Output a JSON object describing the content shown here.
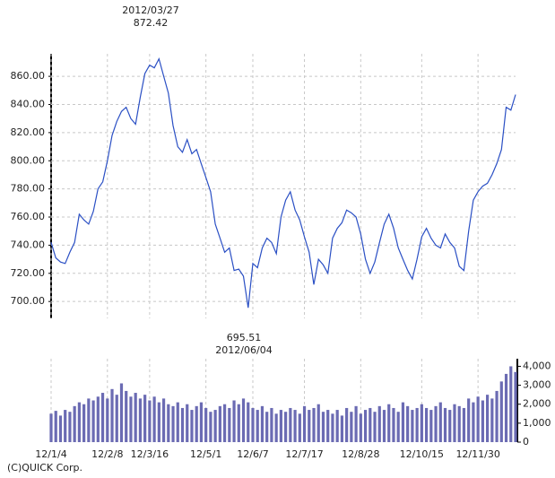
{
  "chart_data": {
    "type": "line",
    "color": "#2a4fc4",
    "grid": true,
    "categories": [
      "12/1/4",
      null,
      null,
      null,
      null,
      null,
      null,
      null,
      null,
      null,
      null,
      null,
      "12/2/8",
      null,
      null,
      null,
      null,
      null,
      null,
      null,
      null,
      "12/3/16",
      null,
      null,
      null,
      null,
      null,
      null,
      null,
      null,
      null,
      null,
      null,
      "12/5/1",
      null,
      null,
      null,
      null,
      null,
      null,
      null,
      null,
      null,
      "12/6/7",
      null,
      null,
      null,
      null,
      null,
      null,
      null,
      null,
      null,
      null,
      "12/7/17",
      null,
      null,
      null,
      null,
      null,
      null,
      null,
      null,
      null,
      null,
      null,
      "12/8/28",
      null,
      null,
      null,
      null,
      null,
      null,
      null,
      null,
      null,
      null,
      null,
      null,
      "12/10/15",
      null,
      null,
      null,
      null,
      null,
      null,
      null,
      null,
      null,
      null,
      null,
      "12/11/30",
      null,
      null,
      null,
      null,
      null,
      null,
      null,
      null
    ],
    "values": [
      742,
      731,
      728,
      727,
      735,
      742,
      762,
      758,
      755,
      764,
      780,
      785,
      800,
      818,
      828,
      835,
      838,
      830,
      826,
      845,
      862,
      868,
      866,
      872.42,
      860,
      848,
      825,
      810,
      806,
      815,
      805,
      808,
      798,
      788,
      778,
      755,
      745,
      735,
      738,
      722,
      723,
      718,
      695.51,
      727,
      724,
      738,
      745,
      742,
      734,
      760,
      772,
      778,
      765,
      758,
      746,
      735,
      712,
      730,
      726,
      720,
      745,
      752,
      756,
      765,
      763,
      760,
      748,
      730,
      720,
      728,
      742,
      755,
      762,
      752,
      738,
      730,
      722,
      716,
      730,
      746,
      752,
      745,
      740,
      738,
      748,
      742,
      738,
      725,
      722,
      750,
      772,
      778,
      782,
      784,
      790,
      798,
      808,
      838,
      836,
      847
    ],
    "ylim": [
      688,
      876
    ],
    "yticks": [
      {
        "value": 700,
        "label": "700.00"
      },
      {
        "value": 720,
        "label": "720.00"
      },
      {
        "value": 740,
        "label": "740.00"
      },
      {
        "value": 760,
        "label": "760.00"
      },
      {
        "value": 780,
        "label": "780.00"
      },
      {
        "value": 800,
        "label": "800.00"
      },
      {
        "value": 820,
        "label": "820.00"
      },
      {
        "value": 840,
        "label": "840.00"
      },
      {
        "value": 860,
        "label": "860.00"
      }
    ],
    "annotations": {
      "high": [
        "2012/03/27",
        "872.42"
      ],
      "low": [
        "695.51",
        "2012/06/04"
      ]
    },
    "volume": {
      "type": "bar",
      "color": "#6b6bb3",
      "values": [
        1500,
        1650,
        1400,
        1700,
        1600,
        1900,
        2100,
        2000,
        2300,
        2200,
        2400,
        2600,
        2300,
        2800,
        2500,
        3100,
        2700,
        2400,
        2600,
        2300,
        2500,
        2200,
        2400,
        2100,
        2300,
        2000,
        1900,
        2100,
        1800,
        2000,
        1700,
        1900,
        2100,
        1800,
        1600,
        1700,
        1900,
        2000,
        1800,
        2200,
        2000,
        2300,
        2100,
        1800,
        1700,
        1900,
        1600,
        1800,
        1500,
        1700,
        1600,
        1800,
        1700,
        1500,
        1900,
        1700,
        1800,
        2000,
        1600,
        1700,
        1500,
        1700,
        1400,
        1800,
        1600,
        1900,
        1500,
        1700,
        1800,
        1600,
        1900,
        1700,
        2000,
        1800,
        1600,
        2100,
        1900,
        1700,
        1800,
        2000,
        1800,
        1700,
        1900,
        2100,
        1800,
        1700,
        2000,
        1900,
        1800,
        2300,
        2100,
        2400,
        2200,
        2500,
        2300,
        2700,
        3200,
        3600,
        4000,
        3700
      ],
      "ylim": [
        0,
        4400
      ],
      "yticks": [
        0,
        {
          "value": 1000,
          "label": "1,000"
        },
        {
          "value": 2000,
          "label": "2,000"
        },
        {
          "value": 3000,
          "label": "3,000"
        },
        {
          "value": 4000,
          "label": "4,000"
        }
      ]
    },
    "footer": "(C)QUICK Corp."
  }
}
